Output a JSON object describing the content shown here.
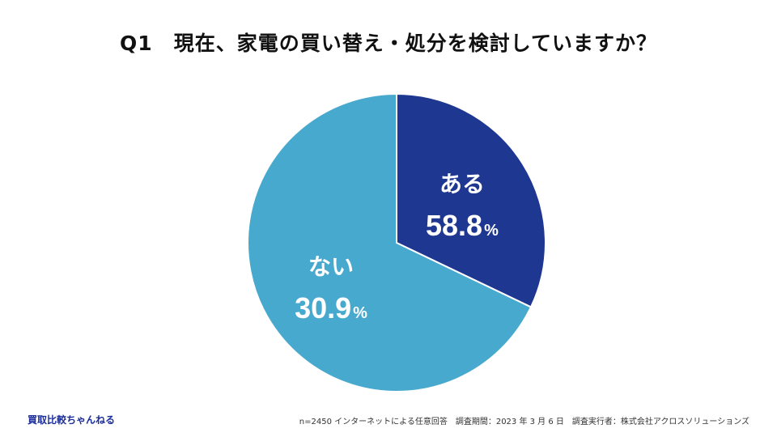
{
  "title": {
    "qnum": "Q1",
    "text": "現在、家電の買い替え・処分を検討していますか？"
  },
  "footer": {
    "brand": "買取比較ちゃんねる",
    "note": "n=2450 インターネットによる任意回答　調査期間：2023 年 3 月 6 日　調査実行者：株式会社アクロスソリューションズ"
  },
  "chart_data": {
    "type": "pie",
    "unit": "%",
    "slices": [
      {
        "label": "ある",
        "value": 58.8,
        "color": "#1e3791"
      },
      {
        "label": "ない",
        "value": 30.9,
        "color": "#48a9ce"
      }
    ],
    "start_angle_deg": 0,
    "direction": "clockwise",
    "border_color": "#ffffff"
  }
}
